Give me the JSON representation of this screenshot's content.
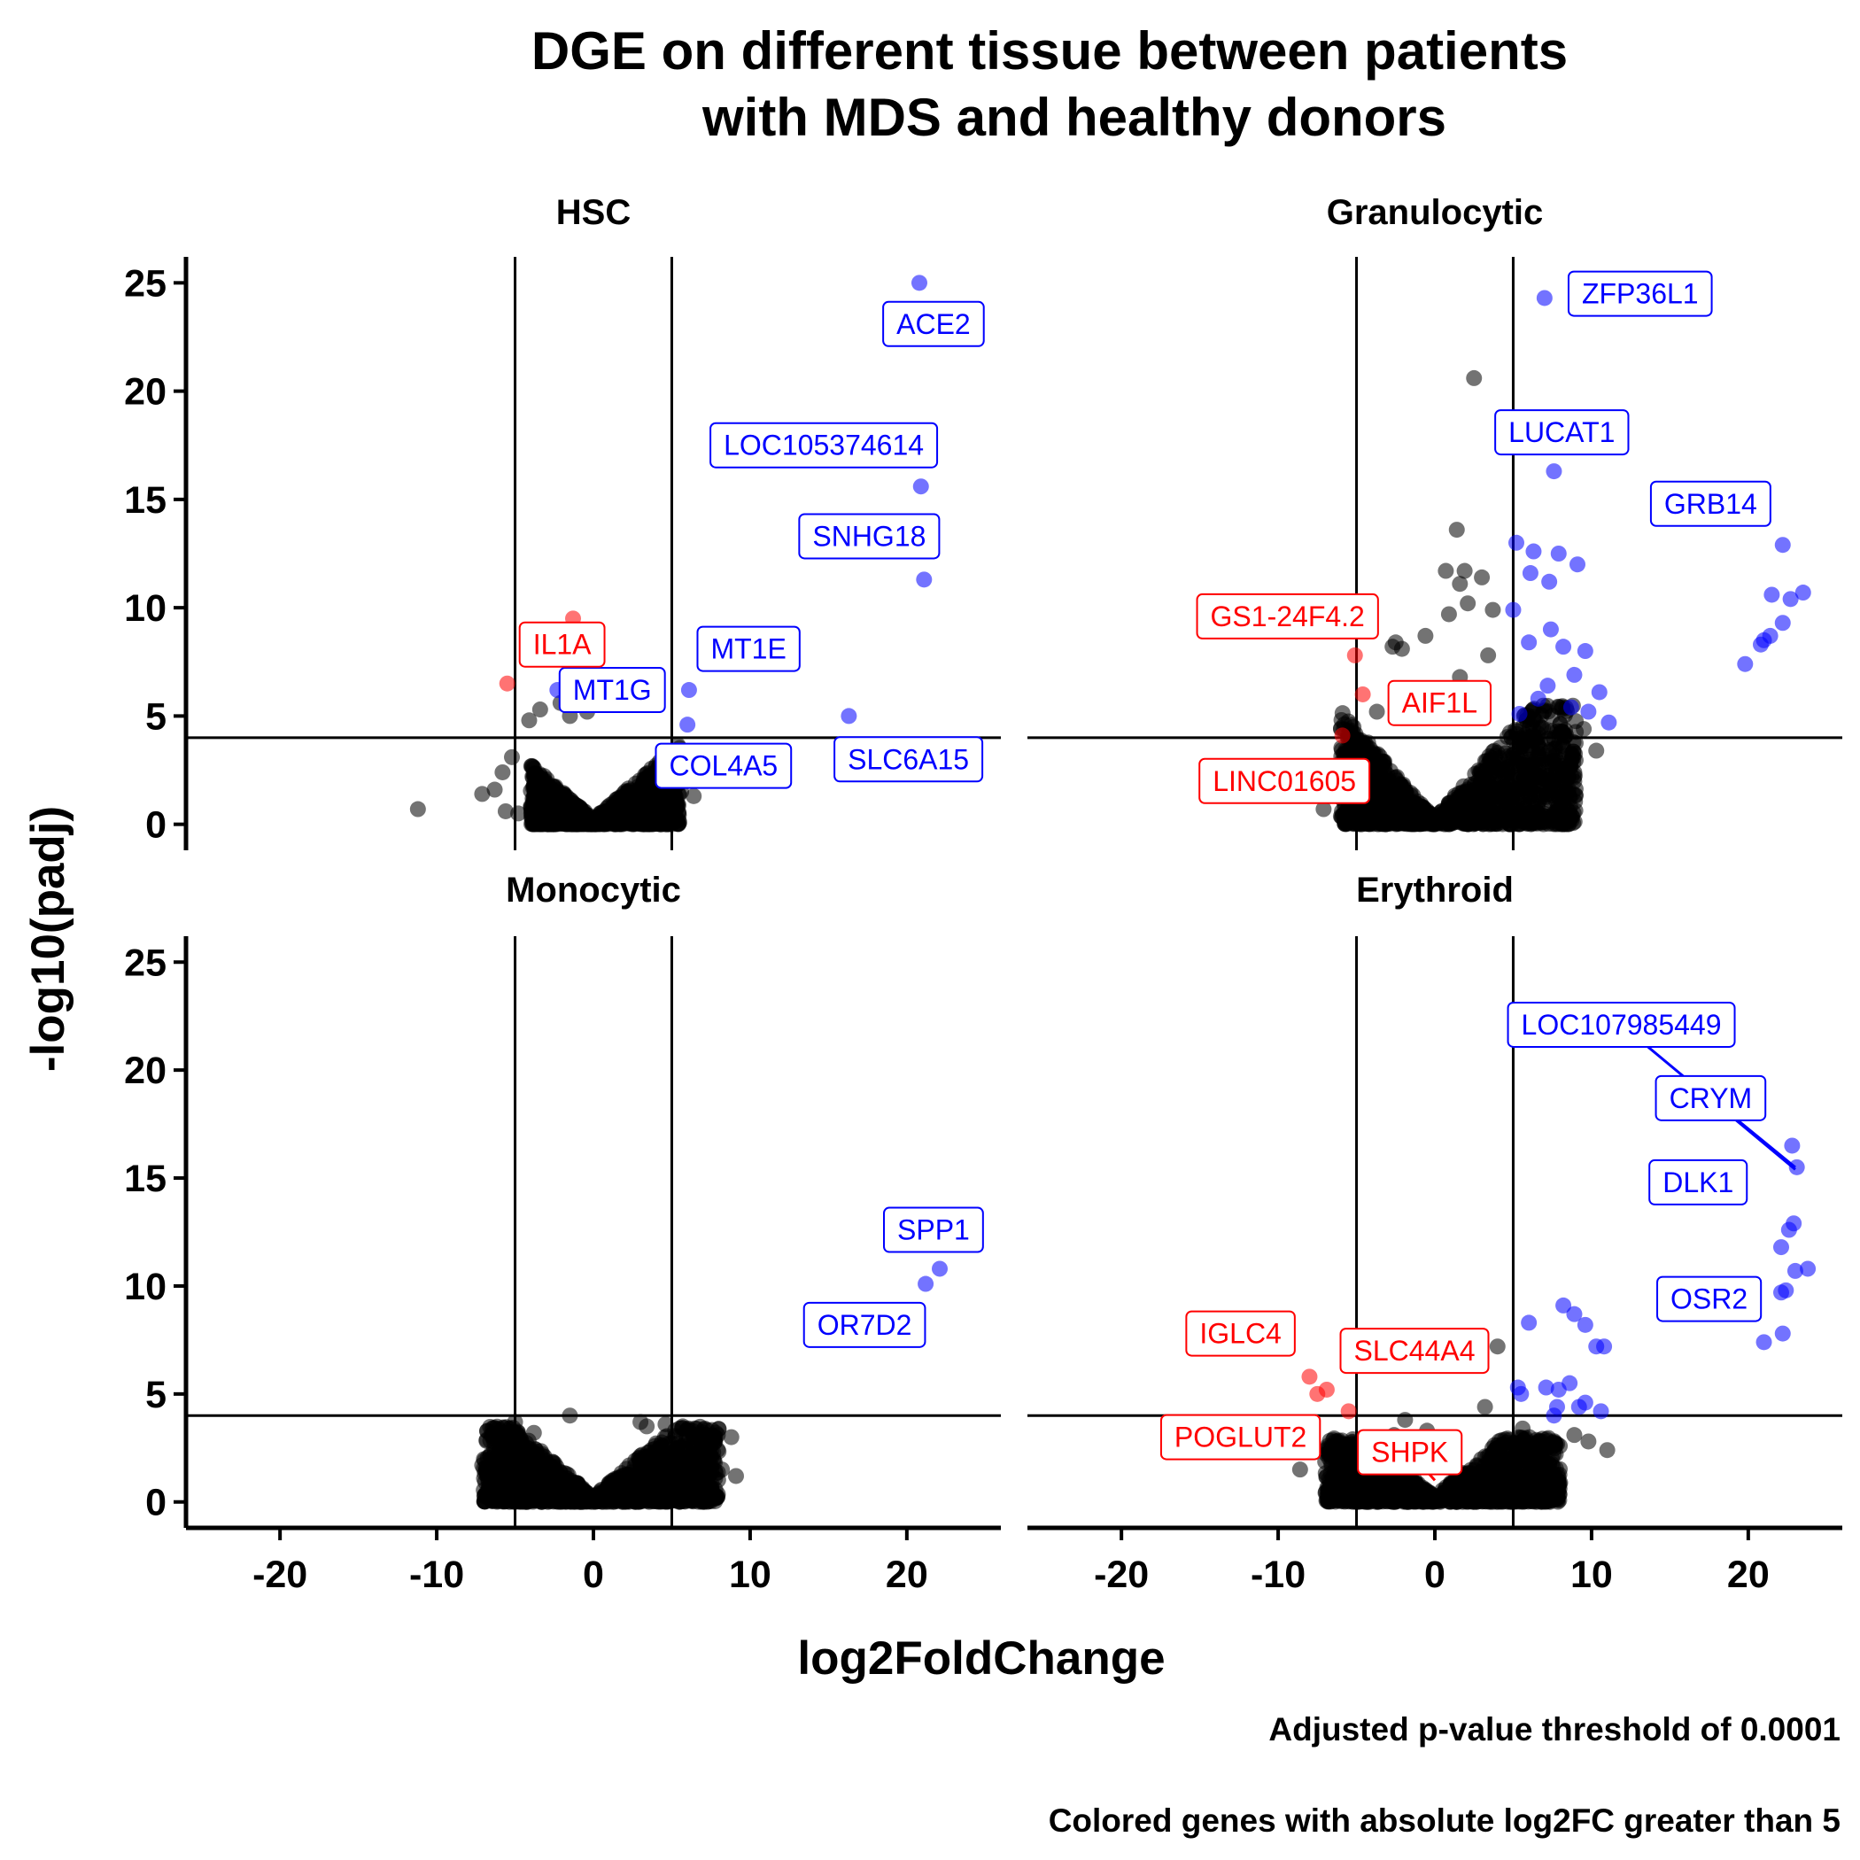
{
  "chart_data": {
    "type": "scatter",
    "title_lines": [
      "DGE on different tissue between patients",
      "with MDS and healthy donors"
    ],
    "xlabel": "log2FoldChange",
    "ylabel": "-log10(padj)",
    "caption_lines": [
      "Adjusted p-value threshold of 0.0001",
      "Colored genes with absolute log2FC greater than 5"
    ],
    "xlim": [
      -26,
      26
    ],
    "ylim": [
      -1.2,
      26.2
    ],
    "x_ticks": [
      -20,
      -10,
      0,
      10,
      20
    ],
    "y_ticks": [
      0,
      5,
      10,
      15,
      20,
      25
    ],
    "x_tick_labels": [
      "-20",
      "-10",
      "0",
      "10",
      "20"
    ],
    "y_tick_labels": [
      "0",
      "5",
      "10",
      "15",
      "20",
      "25"
    ],
    "vlines": [
      -5,
      5
    ],
    "hline": 4,
    "colors": {
      "up": "#0000ff",
      "down": "#ff0000",
      "ns": "#000000"
    },
    "panels": [
      {
        "name": "HSC",
        "cloud": {
          "xmin": -4,
          "xmax": 5.5,
          "ymax": 4.5,
          "density": 0.9
        },
        "ns_points": [
          [
            -11.2,
            0.7
          ],
          [
            -5.8,
            2.4
          ],
          [
            -6.3,
            1.6
          ],
          [
            -7.1,
            1.4
          ],
          [
            -5.2,
            3.1
          ],
          [
            -3.4,
            5.3
          ],
          [
            -2.1,
            5.6
          ],
          [
            -1.5,
            5.0
          ],
          [
            -4.1,
            4.8
          ],
          [
            -0.4,
            5.2
          ],
          [
            5.6,
            1.5
          ],
          [
            6.4,
            1.3
          ],
          [
            -5.6,
            0.6
          ],
          [
            -4.8,
            0.5
          ]
        ],
        "up_points": [
          [
            20.8,
            25.0
          ],
          [
            20.9,
            15.6
          ],
          [
            21.1,
            11.3
          ],
          [
            6.1,
            6.2
          ],
          [
            6.0,
            4.6
          ],
          [
            16.3,
            5.0
          ],
          [
            -2.3,
            6.2
          ]
        ],
        "down_points": [
          [
            -5.5,
            6.5
          ],
          [
            -1.3,
            9.5
          ]
        ],
        "labels": [
          {
            "text": "ACE2",
            "cls": "up",
            "x": 21.7,
            "y": 23.1
          },
          {
            "text": "LOC105374614",
            "cls": "up",
            "x": 14.7,
            "y": 17.5
          },
          {
            "text": "SNHG18",
            "cls": "up",
            "x": 17.6,
            "y": 13.3
          },
          {
            "text": "MT1E",
            "cls": "up",
            "x": 9.9,
            "y": 8.1
          },
          {
            "text": "SLC6A15",
            "cls": "up",
            "x": 20.1,
            "y": 3.0
          },
          {
            "text": "COL4A5",
            "cls": "up",
            "x": 8.3,
            "y": 2.7
          },
          {
            "text": "MT1G",
            "cls": "up",
            "x": 1.2,
            "y": 6.2
          },
          {
            "text": "IL1A",
            "cls": "down",
            "x": -2.0,
            "y": 8.3
          }
        ]
      },
      {
        "name": "Granulocytic",
        "cloud": {
          "xmin": -6,
          "xmax": 9,
          "ymax": 5.5,
          "density": 1.2
        },
        "ns_points": [
          [
            2.5,
            20.6
          ],
          [
            1.4,
            13.6
          ],
          [
            -2.5,
            8.4
          ],
          [
            -2.1,
            8.1
          ],
          [
            0.7,
            11.7
          ],
          [
            1.9,
            11.7
          ],
          [
            1.6,
            11.1
          ],
          [
            3.0,
            11.4
          ],
          [
            0.9,
            9.7
          ],
          [
            -0.6,
            8.7
          ],
          [
            -2.7,
            8.2
          ],
          [
            3.4,
            7.8
          ],
          [
            1.6,
            6.8
          ],
          [
            -3.7,
            5.2
          ],
          [
            -4.9,
            3.9
          ],
          [
            10.3,
            3.4
          ],
          [
            9.5,
            4.4
          ],
          [
            8.9,
            2.4
          ],
          [
            -5.6,
            3.3
          ],
          [
            -6.8,
            1.3
          ],
          [
            -7.1,
            0.7
          ],
          [
            3.7,
            9.9
          ],
          [
            2.1,
            10.2
          ]
        ],
        "up_points": [
          [
            7.0,
            24.3
          ],
          [
            7.6,
            16.3
          ],
          [
            22.2,
            12.9
          ],
          [
            23.5,
            10.7
          ],
          [
            21.5,
            10.6
          ],
          [
            22.7,
            10.4
          ],
          [
            22.2,
            9.3
          ],
          [
            21.4,
            8.7
          ],
          [
            21.0,
            8.5
          ],
          [
            20.8,
            8.3
          ],
          [
            19.8,
            7.4
          ],
          [
            5.2,
            13.0
          ],
          [
            6.3,
            12.6
          ],
          [
            7.9,
            12.5
          ],
          [
            9.1,
            12.0
          ],
          [
            7.3,
            11.2
          ],
          [
            6.1,
            11.6
          ],
          [
            5.0,
            9.9
          ],
          [
            7.4,
            9.0
          ],
          [
            8.2,
            8.2
          ],
          [
            9.6,
            8.0
          ],
          [
            10.5,
            6.1
          ],
          [
            11.1,
            4.7
          ],
          [
            9.8,
            5.2
          ],
          [
            8.7,
            5.4
          ],
          [
            6.6,
            5.8
          ],
          [
            8.9,
            6.9
          ],
          [
            5.4,
            5.1
          ],
          [
            7.2,
            6.4
          ],
          [
            6.0,
            8.4
          ]
        ],
        "down_points": [
          [
            -5.1,
            7.8
          ],
          [
            -4.6,
            6.0
          ],
          [
            -5.9,
            4.1
          ]
        ],
        "labels": [
          {
            "text": "ZFP36L1",
            "cls": "up",
            "x": 13.1,
            "y": 24.5
          },
          {
            "text": "LUCAT1",
            "cls": "up",
            "x": 8.1,
            "y": 18.1
          },
          {
            "text": "GRB14",
            "cls": "up",
            "x": 17.6,
            "y": 14.8
          },
          {
            "text": "GS1-24F4.2",
            "cls": "down",
            "x": -9.4,
            "y": 9.6
          },
          {
            "text": "AIF1L",
            "cls": "down",
            "x": 0.3,
            "y": 5.6
          },
          {
            "text": "LINC01605",
            "cls": "down",
            "x": -9.6,
            "y": 2.0
          }
        ]
      },
      {
        "name": "Monocytic",
        "cloud": {
          "xmin": -7,
          "xmax": 8,
          "ymax": 3.5,
          "density": 0.9
        },
        "ns_points": [
          [
            -1.5,
            4.0
          ],
          [
            -5.0,
            3.7
          ],
          [
            -3.8,
            3.2
          ],
          [
            3.0,
            3.7
          ],
          [
            3.4,
            3.5
          ],
          [
            4.6,
            3.6
          ],
          [
            5.7,
            3.5
          ],
          [
            6.3,
            3.3
          ],
          [
            7.1,
            3.4
          ],
          [
            8.8,
            3.0
          ],
          [
            -7.1,
            1.7
          ],
          [
            9.1,
            1.2
          ],
          [
            8.2,
            1.5
          ]
        ],
        "up_points": [
          [
            22.1,
            10.8
          ],
          [
            21.2,
            10.1
          ]
        ],
        "down_points": [],
        "labels": [
          {
            "text": "SPP1",
            "cls": "up",
            "x": 21.7,
            "y": 12.6
          },
          {
            "text": "OR7D2",
            "cls": "up",
            "x": 17.3,
            "y": 8.2
          }
        ]
      },
      {
        "name": "Erythroid",
        "cloud": {
          "xmin": -7,
          "xmax": 8,
          "ymax": 3.0,
          "density": 0.9
        },
        "ns_points": [
          [
            4.0,
            7.2
          ],
          [
            -1.9,
            3.8
          ],
          [
            -2.6,
            3.1
          ],
          [
            -0.5,
            3.3
          ],
          [
            0.5,
            2.4
          ],
          [
            5.6,
            3.4
          ],
          [
            8.9,
            3.1
          ],
          [
            9.8,
            2.8
          ],
          [
            11.0,
            2.4
          ],
          [
            -8.6,
            1.5
          ],
          [
            3.2,
            4.4
          ]
        ],
        "up_points": [
          [
            23.1,
            15.5
          ],
          [
            22.8,
            16.5
          ],
          [
            22.9,
            12.9
          ],
          [
            22.6,
            12.6
          ],
          [
            22.1,
            11.8
          ],
          [
            23.8,
            10.8
          ],
          [
            23.0,
            10.7
          ],
          [
            22.4,
            9.8
          ],
          [
            22.1,
            9.7
          ],
          [
            22.2,
            7.8
          ],
          [
            21.0,
            7.4
          ],
          [
            6.0,
            8.3
          ],
          [
            8.2,
            9.1
          ],
          [
            8.9,
            8.7
          ],
          [
            9.6,
            8.2
          ],
          [
            10.3,
            7.2
          ],
          [
            10.8,
            7.2
          ],
          [
            9.6,
            4.6
          ],
          [
            9.2,
            4.4
          ],
          [
            7.8,
            4.4
          ],
          [
            7.9,
            5.2
          ],
          [
            7.1,
            5.3
          ],
          [
            5.5,
            5.0
          ],
          [
            5.3,
            5.3
          ],
          [
            7.6,
            4.0
          ],
          [
            10.6,
            4.2
          ],
          [
            8.6,
            5.5
          ]
        ],
        "down_points": [
          [
            -8.0,
            5.8
          ],
          [
            -7.5,
            5.0
          ],
          [
            -6.9,
            5.2
          ],
          [
            -5.5,
            4.2
          ]
        ],
        "labels": [
          {
            "text": "LOC107985449",
            "cls": "up",
            "x": 11.9,
            "y": 22.1,
            "leader_to": [
              23.0,
              15.4
            ]
          },
          {
            "text": "CRYM",
            "cls": "up",
            "x": 17.6,
            "y": 18.7,
            "leader_to": [
              23.0,
              15.5
            ]
          },
          {
            "text": "DLK1",
            "cls": "up",
            "x": 16.8,
            "y": 14.8
          },
          {
            "text": "OSR2",
            "cls": "up",
            "x": 17.5,
            "y": 9.4
          },
          {
            "text": "IGLC4",
            "cls": "down",
            "x": -12.4,
            "y": 7.8
          },
          {
            "text": "SLC44A4",
            "cls": "down",
            "x": -1.3,
            "y": 7.0
          },
          {
            "text": "POGLUT2",
            "cls": "down",
            "x": -12.4,
            "y": 3.0
          },
          {
            "text": "SHPK",
            "cls": "down",
            "x": -1.6,
            "y": 2.3,
            "leader_to": [
              0.0,
              1.0
            ]
          }
        ]
      }
    ]
  }
}
